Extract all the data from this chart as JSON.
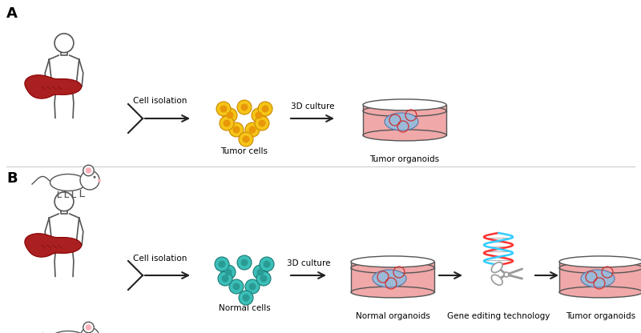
{
  "bg_color": "#ffffff",
  "label_A": "A",
  "label_B": "B",
  "cell_isolation_text": "Cell isolation",
  "3d_culture_text": "3D culture",
  "tumor_cells_text": "Tumor cells",
  "normal_cells_text": "Normal cells",
  "tumor_organoids_text": "Tumor organoids",
  "normal_organoids_text": "Normal organoids",
  "gene_editing_text": "Gene editing technology",
  "tumor_cell_fill": "#F5C518",
  "tumor_cell_inner": "#E8960A",
  "tumor_cell_edge": "#CC8800",
  "normal_cell_fill": "#3BBFB8",
  "normal_cell_inner": "#2A9A94",
  "normal_cell_edge": "#1A7A74",
  "petri_dish_fill": "#F0A8A8",
  "petri_dish_edge": "#555555",
  "petri_top_fill": "#F8D8D8",
  "organoid_fill": "#9BBAD8",
  "organoid_edge": "#5577AA",
  "organoid_inner": "#CC3333",
  "liver_fill": "#AA2020",
  "liver_edge": "#880000",
  "body_edge": "#555555",
  "arrow_color": "#222222",
  "font_size_label": 13,
  "font_size_text": 7.5,
  "dna_color1": "#FF3333",
  "dna_color2": "#33CCFF",
  "scissors_color": "#999999"
}
